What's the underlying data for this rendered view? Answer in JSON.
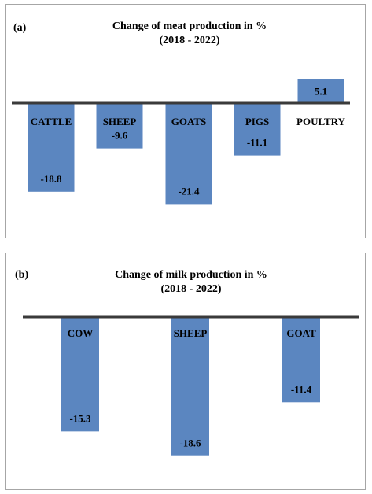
{
  "chart_data": [
    {
      "type": "bar",
      "panel_label": "(a)",
      "title": "Change of meat production in %",
      "subtitle": "(2018 - 2022)",
      "categories": [
        "CATTLE",
        "SHEEP",
        "GOATS",
        "PIGS",
        "POULTRY"
      ],
      "values": [
        -18.8,
        -9.6,
        -21.4,
        -11.1,
        5.1
      ],
      "value_labels": [
        "-18.8",
        "-9.6",
        "-21.4",
        "-11.1",
        "5.1"
      ],
      "xlabel": "",
      "ylabel": "",
      "ylim": [
        -23,
        7
      ],
      "grid": false,
      "bar_color": "#5b86c0"
    },
    {
      "type": "bar",
      "panel_label": "(b)",
      "title": "Change of milk production in %",
      "subtitle": "(2018 - 2022)",
      "categories": [
        "COW",
        "SHEEP",
        "GOAT"
      ],
      "values": [
        -15.3,
        -18.6,
        -11.4
      ],
      "value_labels": [
        "-15.3",
        "-18.6",
        "-11.4"
      ],
      "xlabel": "",
      "ylabel": "",
      "ylim": [
        -20,
        0
      ],
      "grid": false,
      "bar_color": "#5b86c0"
    }
  ]
}
